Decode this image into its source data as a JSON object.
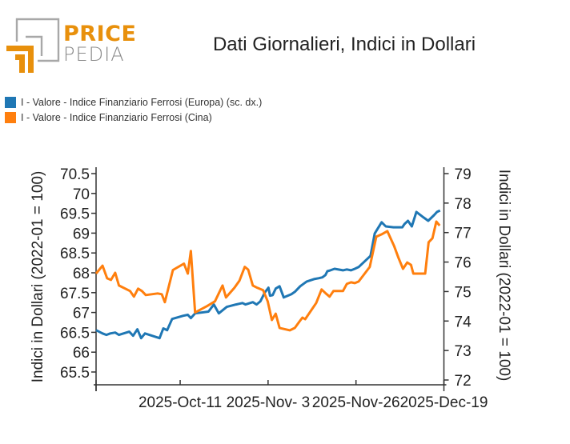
{
  "logo": {
    "line1": "PRICE",
    "line2": "PEDIA",
    "orange": "#e8900c",
    "grey": "#a0a0a0"
  },
  "chart_data": {
    "type": "line",
    "title": "Dati Giornalieri, Indici in Dollari",
    "xlabel": "",
    "ylabel_left": "Indici in Dollari (2022-01 = 100)",
    "ylabel_right": "Indici in Dollari (2022-01 = 100)",
    "x_ticks": [
      "2025-Oct-11",
      "2025-Nov- 3",
      "2025-Nov-26",
      "2025-Dec-19"
    ],
    "x_tick_days": [
      22,
      45,
      68,
      91
    ],
    "x_range_days": [
      0,
      91
    ],
    "ylim_left": [
      65.2,
      70.6
    ],
    "ylim_right": [
      71.85,
      79.2
    ],
    "left_ticks": [
      "70.5",
      "70",
      "69.5",
      "69",
      "68.5",
      "68",
      "67.5",
      "67",
      "66.5",
      "66",
      "65.5"
    ],
    "left_tick_values": [
      70.5,
      70,
      69.5,
      69,
      68.5,
      68,
      67.5,
      67,
      66.5,
      66,
      65.5
    ],
    "right_ticks": [
      "79",
      "78",
      "77",
      "76",
      "75",
      "74",
      "73",
      "72"
    ],
    "right_tick_values": [
      79,
      78,
      77,
      76,
      75,
      74,
      73,
      72
    ],
    "legend_position": "top-left",
    "grid": false,
    "series": [
      {
        "name": "I - Valore - Indice Finanziario Ferrosi (Europa) (sc. dx.)",
        "axis": "right",
        "color": "#1f77b4",
        "x": [
          0,
          1.7,
          2.7,
          3.7,
          5,
          6,
          8.7,
          9.7,
          10.8,
          11.8,
          12.8,
          16.6,
          17.6,
          18.6,
          19.9,
          22.8,
          24,
          24.8,
          25.9,
          29.4,
          30.8,
          32.1,
          34.2,
          36.6,
          38.3,
          39.1,
          41,
          42,
          43,
          44.1,
          45.1,
          45.5,
          46.2,
          47,
          48,
          49.1,
          51.1,
          52,
          53.4,
          55.1,
          57,
          58.2,
          59.2,
          60,
          60.5,
          61.3,
          62.4,
          64.6,
          65.6,
          66.7,
          67.7,
          68.7,
          71.8,
          72.9,
          74.7,
          75.8,
          77.8,
          80.1,
          80.7,
          81.6,
          82.6,
          83.8,
          85.7,
          86.9,
          88.4,
          89.2,
          90
        ],
        "values": [
          73.69,
          73.58,
          73.53,
          73.58,
          73.61,
          73.53,
          73.64,
          73.5,
          73.72,
          73.42,
          73.58,
          73.42,
          73.75,
          73.69,
          74.07,
          74.18,
          74.21,
          74.1,
          74.26,
          74.32,
          74.56,
          74.26,
          74.48,
          74.56,
          74.61,
          74.56,
          74.64,
          74.56,
          74.67,
          74.96,
          75.13,
          74.86,
          74.88,
          75.1,
          75.18,
          74.8,
          74.91,
          74.99,
          75.18,
          75.34,
          75.42,
          75.45,
          75.48,
          75.56,
          75.69,
          75.72,
          75.77,
          75.72,
          75.75,
          75.72,
          75.77,
          75.83,
          76.21,
          76.97,
          77.35,
          77.21,
          77.18,
          77.18,
          77.29,
          77.4,
          77.21,
          77.7,
          77.51,
          77.4,
          77.59,
          77.7,
          77.75
        ]
      },
      {
        "name": "I - Valore - Indice Finanziario Ferrosi (Cina)",
        "axis": "left",
        "color": "#ff7f0e",
        "x": [
          0,
          1.7,
          2.9,
          3.9,
          5,
          6,
          8.9,
          9.9,
          11,
          12,
          13,
          16.1,
          17.2,
          18,
          20.1,
          23,
          24,
          24.8,
          25.9,
          29,
          31.1,
          33.1,
          34,
          36.2,
          37.5,
          38.9,
          39.8,
          41,
          42.2,
          43.7,
          44.9,
          46,
          47,
          48,
          50.7,
          52,
          53.2,
          54,
          54.7,
          57.6,
          59,
          60.1,
          61.1,
          62.1,
          64.6,
          65.6,
          66.7,
          67.7,
          68.7,
          71.6,
          73.3,
          74.7,
          76.2,
          78,
          79.1,
          80.3,
          81.4,
          82.4,
          83,
          86.1,
          87,
          88,
          89,
          89.9
        ],
        "values": [
          67.98,
          68.18,
          67.86,
          67.82,
          68,
          67.68,
          67.54,
          67.4,
          67.6,
          67.54,
          67.44,
          67.48,
          67.46,
          67.26,
          68.07,
          68.23,
          67.98,
          68.55,
          67,
          67.16,
          67.28,
          67.68,
          67.38,
          67.62,
          67.8,
          68.15,
          68.08,
          67.68,
          67.62,
          67.56,
          67.28,
          66.81,
          66.97,
          66.61,
          66.55,
          66.61,
          66.77,
          66.87,
          66.83,
          67.24,
          67.58,
          67.48,
          67.4,
          67.54,
          67.54,
          67.72,
          67.76,
          67.74,
          67.78,
          68.15,
          68.91,
          68.97,
          69.05,
          68.67,
          68.38,
          68.1,
          68.26,
          68.2,
          67.98,
          67.98,
          68.77,
          68.87,
          69.29,
          69.19
        ]
      }
    ]
  }
}
